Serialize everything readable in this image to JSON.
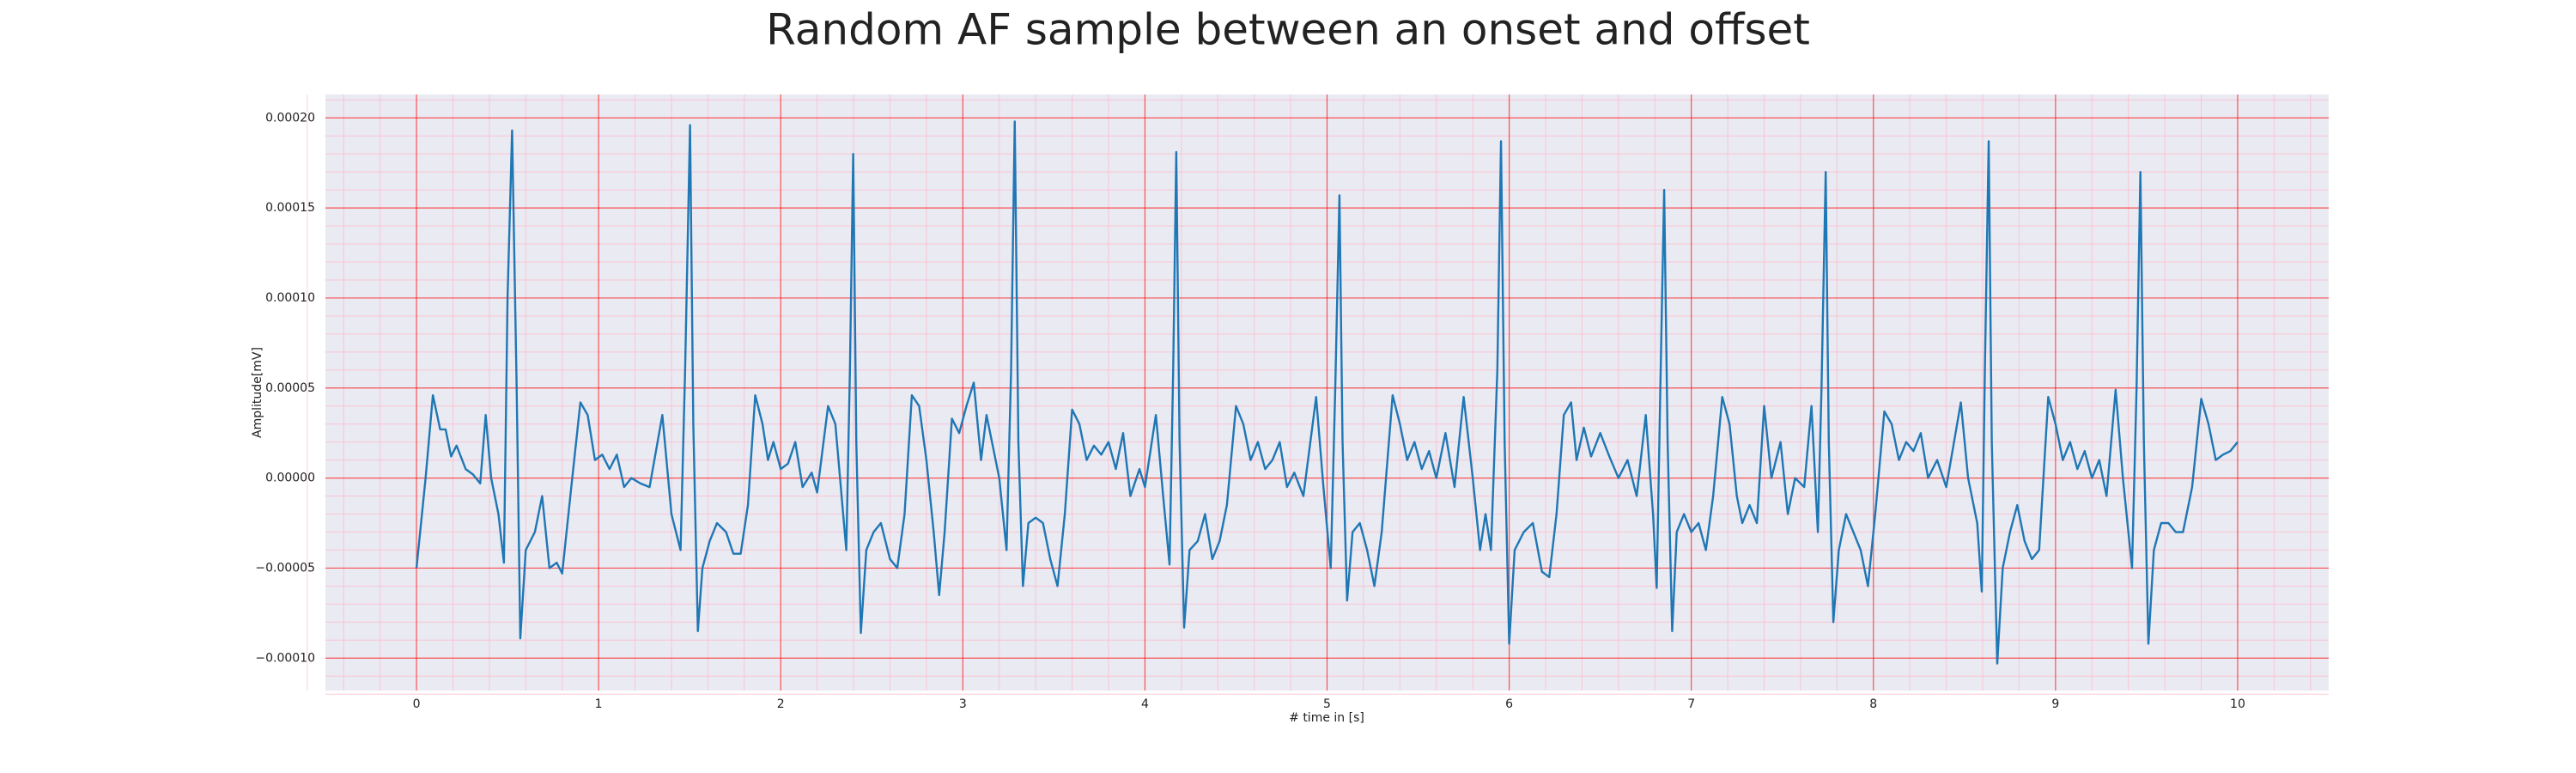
{
  "chart_data": {
    "type": "line",
    "title": "Random AF sample between an onset and offset",
    "x_label": "# time in [s]",
    "y_label": "Amplitude[mV]",
    "color": "#1f77b4",
    "grid": true,
    "grid_color": "#ff0000",
    "minor_grid_color": "#ffb6c8",
    "minor_divisions": 5,
    "background": "#eaeaf2",
    "xlim": [
      -0.5,
      10.5
    ],
    "ylim": [
      -0.000118,
      0.000213
    ],
    "xticks": [
      0,
      1,
      2,
      3,
      4,
      5,
      6,
      7,
      8,
      9,
      10
    ],
    "yticks": [
      {
        "value": -0.0001,
        "label": "−0.00010"
      },
      {
        "value": -5e-05,
        "label": "−0.00005"
      },
      {
        "value": 0,
        "label": "0.00000"
      },
      {
        "value": 5e-05,
        "label": "0.00005"
      },
      {
        "value": 0.0001,
        "label": "0.00010"
      },
      {
        "value": 0.00015,
        "label": "0.00015"
      },
      {
        "value": 0.0002,
        "label": "0.00020"
      }
    ],
    "x": [
      0,
      0.05,
      0.09,
      0.13,
      0.16,
      0.19,
      0.22,
      0.27,
      0.31,
      0.35,
      0.38,
      0.41,
      0.45,
      0.48,
      0.5,
      0.525,
      0.55,
      0.57,
      0.6,
      0.65,
      0.69,
      0.73,
      0.77,
      0.8,
      0.85,
      0.9,
      0.94,
      0.98,
      1.02,
      1.06,
      1.1,
      1.14,
      1.18,
      1.23,
      1.28,
      1.35,
      1.4,
      1.45,
      1.475,
      1.502,
      1.52,
      1.545,
      1.57,
      1.61,
      1.65,
      1.7,
      1.74,
      1.78,
      1.82,
      1.86,
      1.9,
      1.93,
      1.96,
      2.0,
      2.04,
      2.08,
      2.12,
      2.17,
      2.2,
      2.26,
      2.3,
      2.36,
      2.38,
      2.398,
      2.415,
      2.44,
      2.47,
      2.51,
      2.55,
      2.6,
      2.64,
      2.68,
      2.72,
      2.76,
      2.8,
      2.84,
      2.87,
      2.9,
      2.94,
      2.98,
      3.02,
      3.06,
      3.1,
      3.13,
      3.2,
      3.24,
      3.265,
      3.285,
      3.305,
      3.33,
      3.36,
      3.4,
      3.44,
      3.48,
      3.52,
      3.56,
      3.6,
      3.64,
      3.68,
      3.72,
      3.76,
      3.8,
      3.84,
      3.88,
      3.92,
      3.97,
      4.0,
      4.06,
      4.1,
      4.135,
      4.155,
      4.172,
      4.19,
      4.215,
      4.245,
      4.29,
      4.33,
      4.37,
      4.41,
      4.45,
      4.5,
      4.54,
      4.58,
      4.62,
      4.66,
      4.7,
      4.74,
      4.78,
      4.82,
      4.87,
      4.94,
      4.98,
      5.02,
      5.045,
      5.068,
      5.085,
      5.11,
      5.14,
      5.18,
      5.22,
      5.26,
      5.3,
      5.36,
      5.4,
      5.44,
      5.48,
      5.52,
      5.56,
      5.6,
      5.65,
      5.7,
      5.75,
      5.8,
      5.84,
      5.87,
      5.9,
      5.935,
      5.955,
      5.975,
      6.0,
      6.03,
      6.08,
      6.13,
      6.18,
      6.22,
      6.26,
      6.3,
      6.34,
      6.37,
      6.41,
      6.45,
      6.5,
      6.55,
      6.6,
      6.65,
      6.7,
      6.75,
      6.79,
      6.81,
      6.83,
      6.851,
      6.87,
      6.895,
      6.92,
      6.96,
      7.0,
      7.04,
      7.08,
      7.12,
      7.17,
      7.21,
      7.25,
      7.28,
      7.32,
      7.36,
      7.4,
      7.44,
      7.49,
      7.53,
      7.57,
      7.62,
      7.66,
      7.695,
      7.715,
      7.738,
      7.755,
      7.78,
      7.81,
      7.85,
      7.89,
      7.93,
      7.97,
      8.01,
      8.06,
      8.1,
      8.14,
      8.18,
      8.22,
      8.26,
      8.3,
      8.35,
      8.4,
      8.48,
      8.52,
      8.57,
      8.595,
      8.612,
      8.633,
      8.65,
      8.68,
      8.71,
      8.75,
      8.79,
      8.83,
      8.87,
      8.91,
      8.96,
      9.0,
      9.04,
      9.08,
      9.12,
      9.16,
      9.2,
      9.24,
      9.28,
      9.33,
      9.37,
      9.42,
      9.445,
      9.466,
      9.485,
      9.51,
      9.54,
      9.58,
      9.62,
      9.66,
      9.7,
      9.75,
      9.8,
      9.84,
      9.88,
      9.92,
      9.96,
      10.0
    ],
    "values": [
      -5e-05,
      0,
      4.6e-05,
      2.7e-05,
      2.7e-05,
      1.2e-05,
      1.8e-05,
      5e-06,
      2e-06,
      -3e-06,
      3.5e-05,
      0,
      -2e-05,
      -4.7e-05,
      0.0001,
      0.000193,
      5e-05,
      -8.9e-05,
      -4e-05,
      -3e-05,
      -1e-05,
      -5e-05,
      -4.7e-05,
      -5.3e-05,
      -5e-06,
      4.2e-05,
      3.5e-05,
      1e-05,
      1.3e-05,
      5e-06,
      1.3e-05,
      -5e-06,
      0,
      -3e-06,
      -5e-06,
      3.5e-05,
      -2e-05,
      -4e-05,
      6e-05,
      0.000196,
      3e-05,
      -8.5e-05,
      -5e-05,
      -3.5e-05,
      -2.5e-05,
      -3e-05,
      -4.2e-05,
      -4.2e-05,
      -1.5e-05,
      4.6e-05,
      3e-05,
      1e-05,
      2e-05,
      5e-06,
      8e-06,
      2e-05,
      -5e-06,
      3e-06,
      -8e-06,
      4e-05,
      3e-05,
      -4e-05,
      6e-05,
      0.00018,
      2e-05,
      -8.6e-05,
      -4e-05,
      -3e-05,
      -2.5e-05,
      -4.5e-05,
      -5e-05,
      -2e-05,
      4.6e-05,
      4e-05,
      1e-05,
      -3e-05,
      -6.5e-05,
      -3e-05,
      3.3e-05,
      2.5e-05,
      4e-05,
      5.3e-05,
      1e-05,
      3.5e-05,
      0,
      -4e-05,
      6e-05,
      0.000198,
      2e-05,
      -6e-05,
      -2.5e-05,
      -2.2e-05,
      -2.5e-05,
      -4.5e-05,
      -6e-05,
      -2e-05,
      3.8e-05,
      3e-05,
      1e-05,
      1.8e-05,
      1.3e-05,
      2e-05,
      5e-06,
      2.5e-05,
      -1e-05,
      5e-06,
      -5e-06,
      3.5e-05,
      -1e-05,
      -4.8e-05,
      6e-05,
      0.000181,
      2e-05,
      -8.3e-05,
      -4e-05,
      -3.5e-05,
      -2e-05,
      -4.5e-05,
      -3.5e-05,
      -1.5e-05,
      4e-05,
      3e-05,
      1e-05,
      2e-05,
      5e-06,
      1e-05,
      2e-05,
      -5e-06,
      3e-06,
      -1e-05,
      4.5e-05,
      -5e-06,
      -5e-05,
      5e-05,
      0.000157,
      2e-05,
      -6.8e-05,
      -3e-05,
      -2.5e-05,
      -4e-05,
      -6e-05,
      -3e-05,
      4.6e-05,
      3e-05,
      1e-05,
      2e-05,
      5e-06,
      1.5e-05,
      0,
      2.5e-05,
      -5e-06,
      4.5e-05,
      0,
      -4e-05,
      -2e-05,
      -4e-05,
      6e-05,
      0.000187,
      2e-05,
      -9.2e-05,
      -4e-05,
      -3e-05,
      -2.5e-05,
      -5.2e-05,
      -5.5e-05,
      -2e-05,
      3.5e-05,
      4.2e-05,
      1e-05,
      2.8e-05,
      1.2e-05,
      2.5e-05,
      1.2e-05,
      0,
      1e-05,
      -1e-05,
      3.5e-05,
      -2e-05,
      -6.1e-05,
      5e-05,
      0.00016,
      2e-05,
      -8.5e-05,
      -3e-05,
      -2e-05,
      -3e-05,
      -2.5e-05,
      -4e-05,
      -1e-05,
      4.5e-05,
      3e-05,
      -1e-05,
      -2.5e-05,
      -1.5e-05,
      -2.5e-05,
      4e-05,
      0,
      2e-05,
      -2e-05,
      0,
      -5e-06,
      4e-05,
      -3e-05,
      5e-05,
      0.00017,
      2e-05,
      -8e-05,
      -4e-05,
      -2e-05,
      -3e-05,
      -4e-05,
      -6e-05,
      -2e-05,
      3.7e-05,
      3e-05,
      1e-05,
      2e-05,
      1.5e-05,
      2.5e-05,
      0,
      1e-05,
      -5e-06,
      4.2e-05,
      0,
      -2.5e-05,
      -6.3e-05,
      6e-05,
      0.000187,
      2e-05,
      -0.000103,
      -5e-05,
      -3e-05,
      -1.5e-05,
      -3.5e-05,
      -4.5e-05,
      -4e-05,
      4.5e-05,
      3e-05,
      1e-05,
      2e-05,
      5e-06,
      1.5e-05,
      0,
      1e-05,
      -1e-05,
      4.9e-05,
      0,
      -5e-05,
      5e-05,
      0.00017,
      2e-05,
      -9.2e-05,
      -4e-05,
      -2.5e-05,
      -2.5e-05,
      -3e-05,
      -3e-05,
      -5e-06,
      4.4e-05,
      3e-05,
      1e-05,
      1.3e-05,
      1.5e-05,
      2e-05
    ]
  }
}
